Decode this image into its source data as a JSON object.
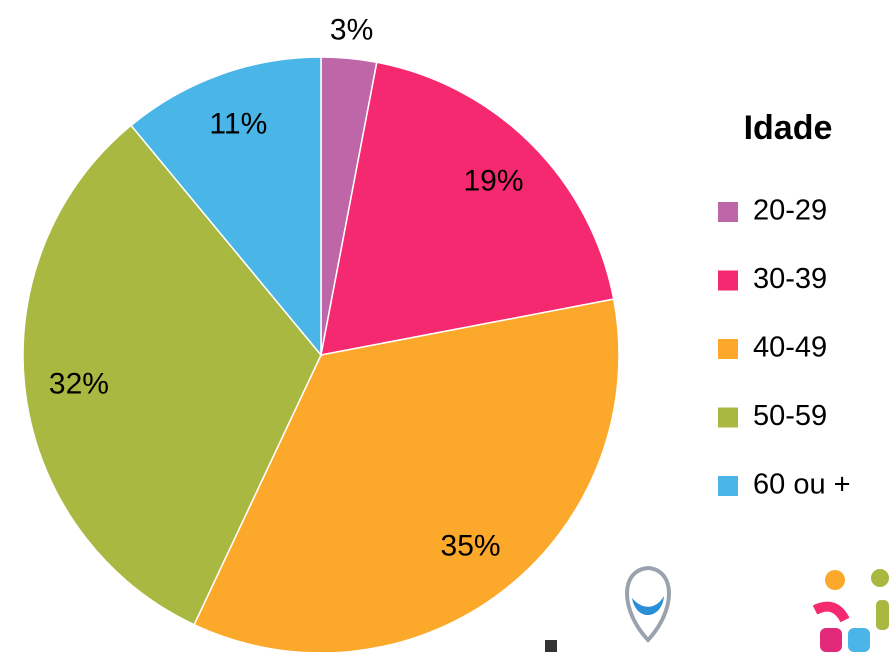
{
  "chart_data": {
    "type": "pie",
    "legend_title": "Idade",
    "legend_position": "right",
    "categories": [
      "20-29",
      "30-39",
      "40-49",
      "50-59",
      "60 ou +"
    ],
    "values": [
      3,
      19,
      35,
      32,
      11
    ],
    "value_labels": [
      "3%",
      "19%",
      "35%",
      "32%",
      "11%"
    ],
    "colors": [
      "#bf66a9",
      "#f5296f",
      "#fba82b",
      "#a9b841",
      "#4ab6e8"
    ]
  }
}
